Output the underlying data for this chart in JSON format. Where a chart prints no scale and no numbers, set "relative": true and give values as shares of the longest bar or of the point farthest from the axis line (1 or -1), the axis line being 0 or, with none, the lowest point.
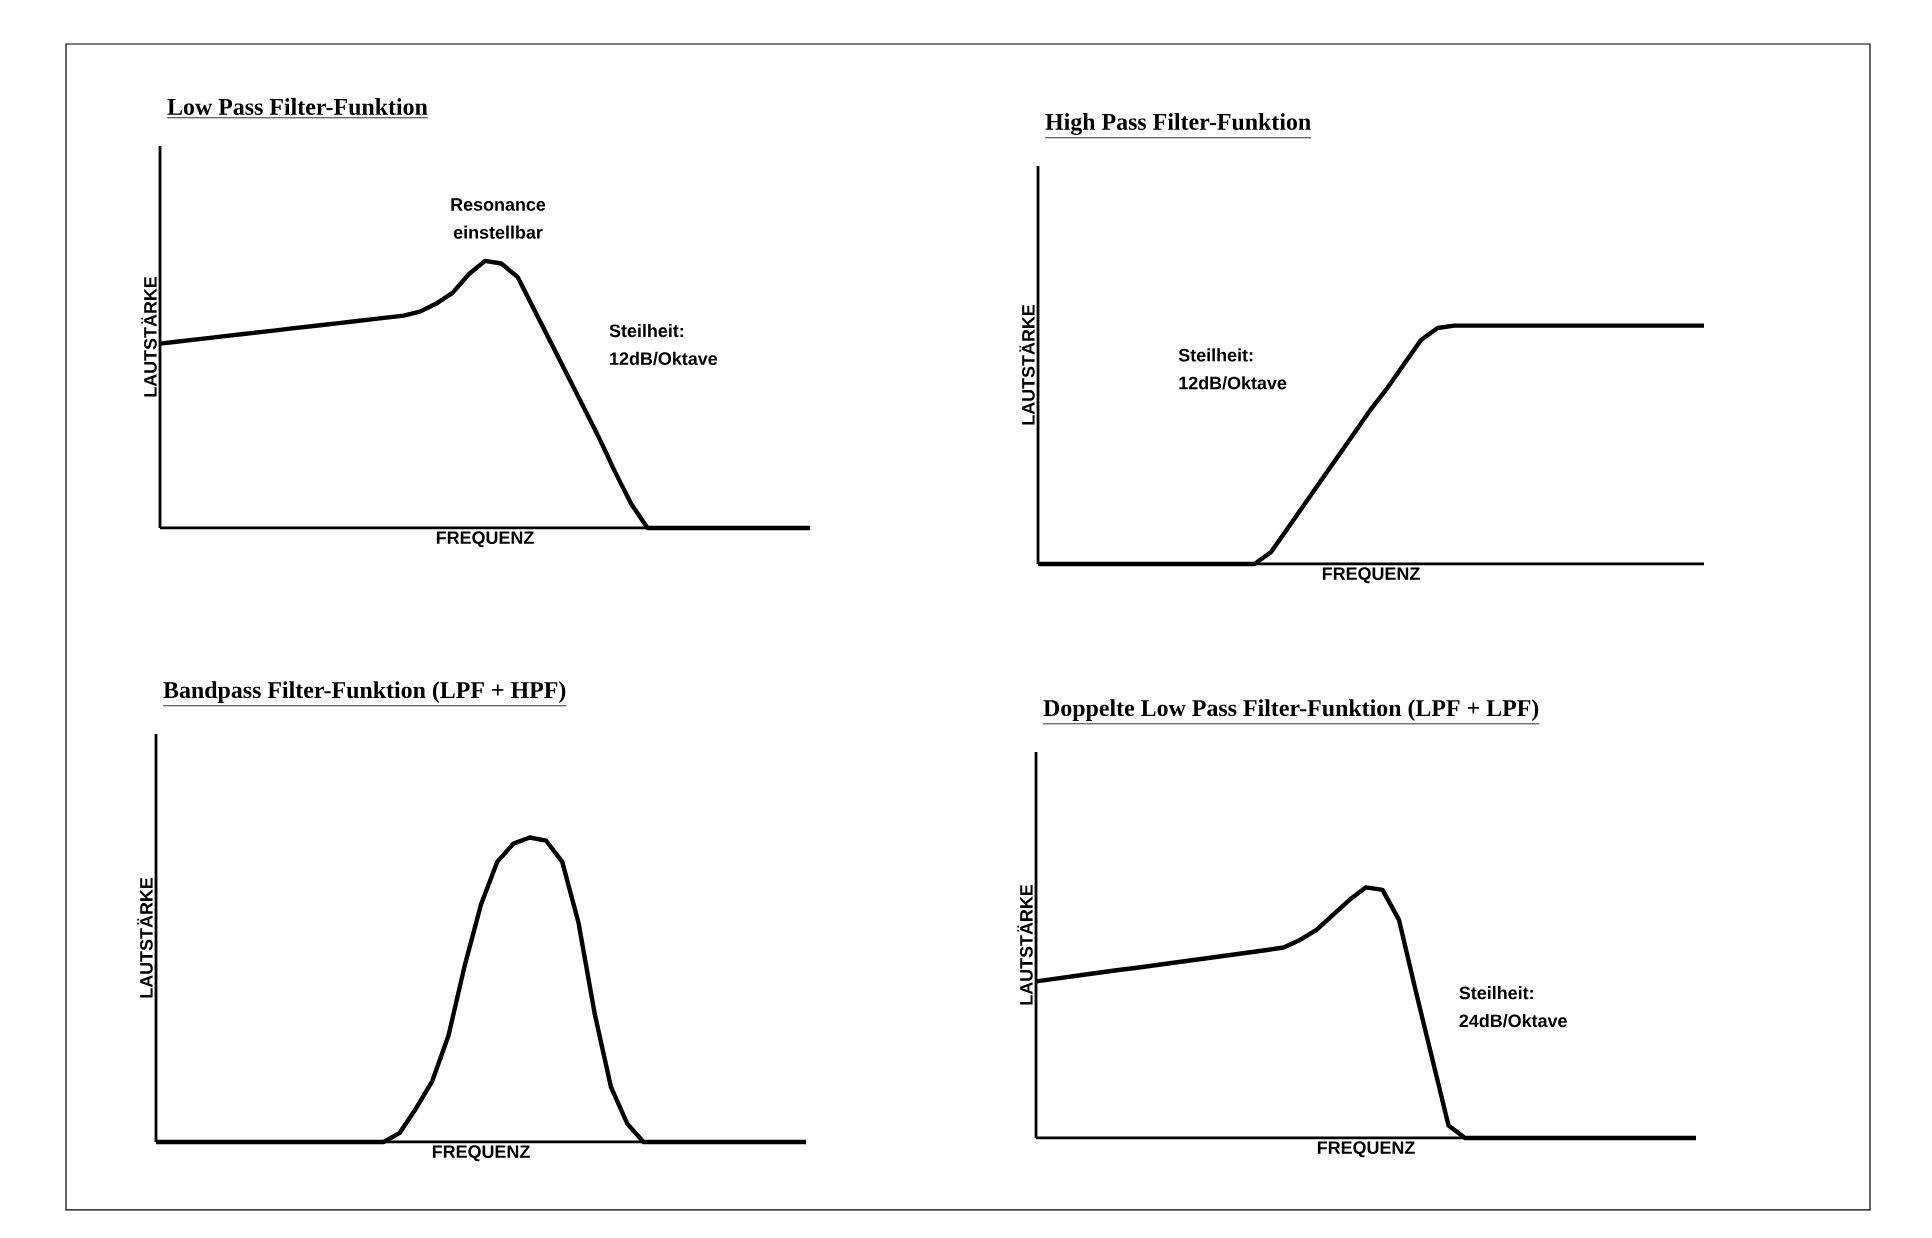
{
  "chart_data": [
    {
      "type": "line",
      "title": "Low Pass Filter-Funktion",
      "xlabel": "FREQUENZ",
      "ylabel": "LAUTSTÄRKE",
      "relative": true,
      "color": "#000000",
      "categories": [
        null,
        null,
        null,
        null,
        null,
        null,
        null,
        null,
        null,
        null,
        null,
        null,
        null,
        null,
        null,
        null,
        null,
        null,
        null,
        null,
        null,
        null,
        null,
        null,
        null,
        null,
        null,
        null,
        null,
        null,
        null,
        null,
        null,
        null,
        null,
        null,
        null,
        null,
        null,
        null,
        null
      ],
      "values": [
        0.69,
        0.697,
        0.704,
        0.711,
        0.718,
        0.725,
        0.732,
        0.739,
        0.746,
        0.753,
        0.76,
        0.767,
        0.774,
        0.781,
        0.788,
        0.795,
        0.81,
        0.84,
        0.88,
        0.95,
        1,
        0.99,
        0.94,
        0.82,
        0.7,
        0.58,
        0.46,
        0.34,
        0.21,
        0.09,
        0,
        0,
        0,
        0,
        0,
        0,
        0,
        0,
        0,
        0,
        0
      ],
      "annotations": [
        "Resonance einstellbar",
        "Steilheit: 12dB/Oktave"
      ]
    },
    {
      "type": "line",
      "title": "High Pass Filter-Funktion",
      "xlabel": "FREQUENZ",
      "ylabel": "LAUTSTÄRKE",
      "relative": true,
      "color": "#000000",
      "categories": [
        null,
        null,
        null,
        null,
        null,
        null,
        null,
        null,
        null,
        null,
        null,
        null,
        null,
        null,
        null,
        null,
        null,
        null,
        null,
        null,
        null,
        null,
        null,
        null,
        null,
        null,
        null,
        null,
        null,
        null,
        null,
        null,
        null,
        null,
        null,
        null,
        null,
        null,
        null,
        null,
        null
      ],
      "values": [
        0,
        0,
        0,
        0,
        0,
        0,
        0,
        0,
        0,
        0,
        0,
        0,
        0,
        0,
        0.05,
        0.15,
        0.25,
        0.35,
        0.45,
        0.55,
        0.65,
        0.74,
        0.84,
        0.94,
        0.99,
        1,
        1,
        1,
        1,
        1,
        1,
        1,
        1,
        1,
        1,
        1,
        1,
        1,
        1,
        1,
        1
      ],
      "annotations": [
        "Steilheit: 12dB/Oktave"
      ]
    },
    {
      "type": "line",
      "title": "Bandpass Filter-Funktion (LPF + HPF)",
      "xlabel": "FREQUENZ",
      "ylabel": "LAUTSTÄRKE",
      "relative": true,
      "color": "#000000",
      "categories": [
        null,
        null,
        null,
        null,
        null,
        null,
        null,
        null,
        null,
        null,
        null,
        null,
        null,
        null,
        null,
        null,
        null,
        null,
        null,
        null,
        null,
        null,
        null,
        null,
        null,
        null,
        null,
        null,
        null,
        null,
        null,
        null,
        null,
        null,
        null,
        null,
        null,
        null,
        null,
        null,
        null
      ],
      "values": [
        0,
        0,
        0,
        0,
        0,
        0,
        0,
        0,
        0,
        0,
        0,
        0,
        0,
        0,
        0,
        0.03,
        0.11,
        0.2,
        0.35,
        0.58,
        0.78,
        0.92,
        0.98,
        1,
        0.99,
        0.92,
        0.72,
        0.42,
        0.18,
        0.06,
        0,
        0,
        0,
        0,
        0,
        0,
        0,
        0,
        0,
        0,
        0
      ]
    },
    {
      "type": "line",
      "title": "Doppelte Low Pass Filter-Funktion (LPF + LPF)",
      "xlabel": "FREQUENZ",
      "ylabel": "LAUTSTÄRKE",
      "relative": true,
      "color": "#000000",
      "categories": [
        null,
        null,
        null,
        null,
        null,
        null,
        null,
        null,
        null,
        null,
        null,
        null,
        null,
        null,
        null,
        null,
        null,
        null,
        null,
        null,
        null,
        null,
        null,
        null,
        null,
        null,
        null,
        null,
        null,
        null,
        null,
        null,
        null,
        null,
        null,
        null,
        null,
        null,
        null,
        null,
        null
      ],
      "values": [
        0.625,
        0.634,
        0.643,
        0.652,
        0.661,
        0.67,
        0.678,
        0.687,
        0.696,
        0.705,
        0.714,
        0.723,
        0.732,
        0.741,
        0.75,
        0.76,
        0.79,
        0.83,
        0.89,
        0.95,
        1,
        0.99,
        0.87,
        0.59,
        0.32,
        0.05,
        0,
        0,
        0,
        0,
        0,
        0,
        0,
        0,
        0,
        0,
        0,
        0,
        0,
        0,
        0
      ],
      "annotations": [
        "Steilheit: 24dB/Oktave"
      ]
    }
  ]
}
